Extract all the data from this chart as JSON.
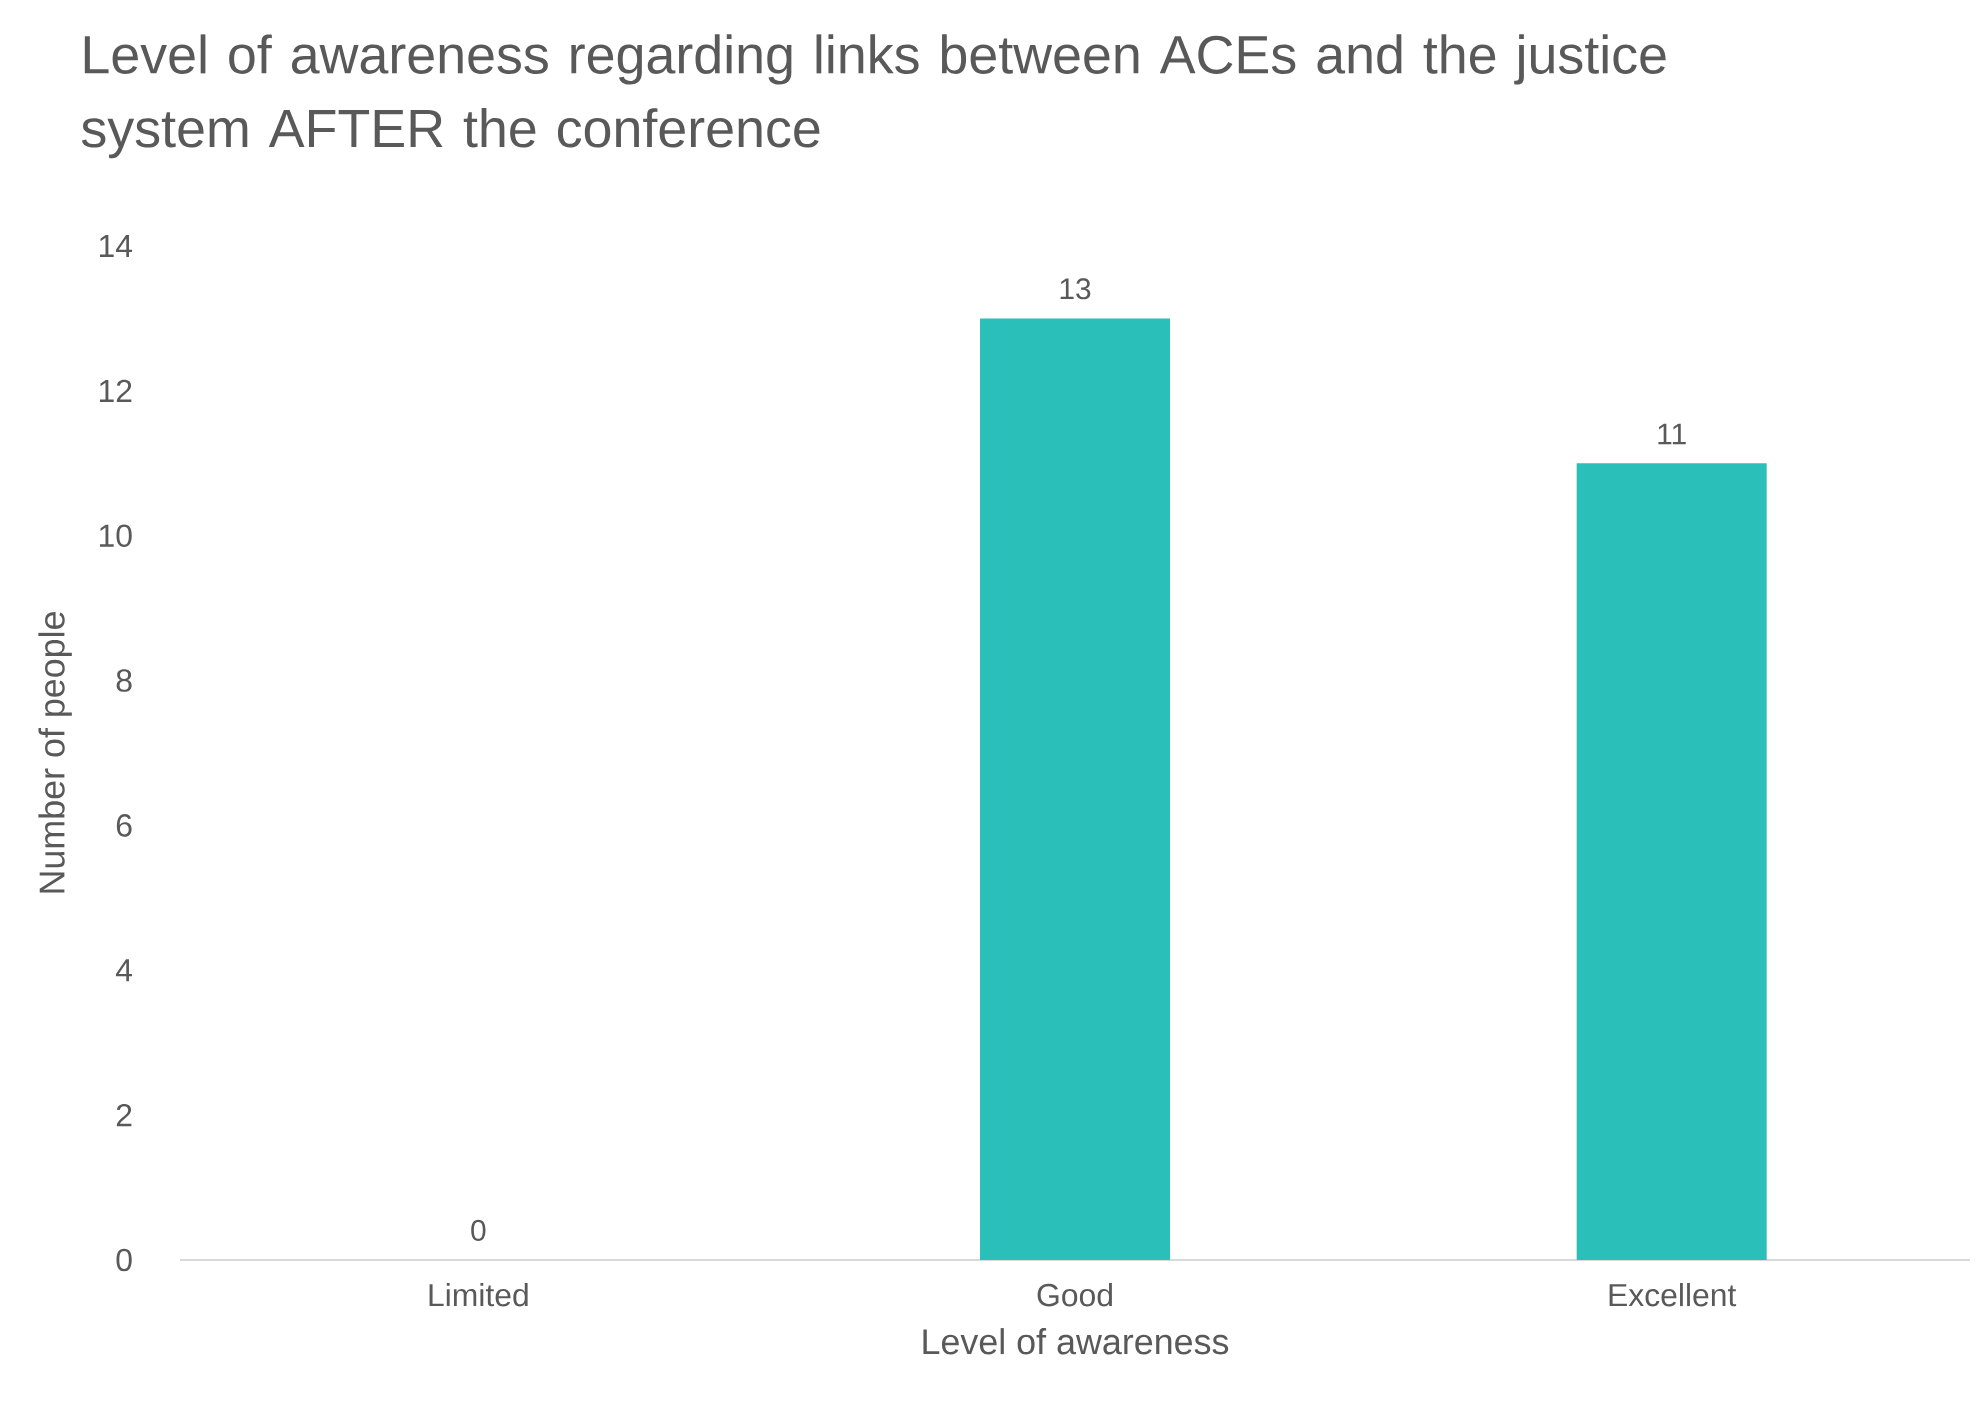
{
  "chart_data": {
    "type": "bar",
    "title": "Level of awareness regarding links between ACEs and the justice system AFTER the conference",
    "xlabel": "Level of awareness",
    "ylabel": "Number of people",
    "categories": [
      "Limited",
      "Good",
      "Excellent"
    ],
    "values": [
      0,
      13,
      11
    ],
    "color": "#2bbfba",
    "ylim": [
      0,
      14
    ],
    "yticks": [
      0,
      2,
      4,
      6,
      8,
      10,
      12,
      14
    ],
    "data_labels": true
  }
}
